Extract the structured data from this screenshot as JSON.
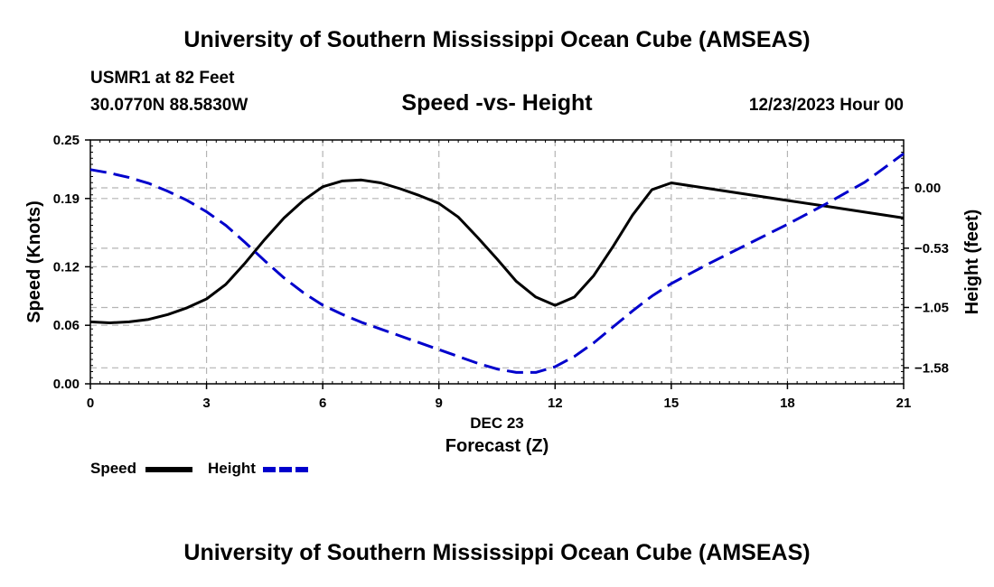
{
  "header": {
    "title": "University of Southern Mississippi Ocean Cube (AMSEAS)",
    "station": "USMR1 at 82 Feet",
    "coords": "30.0770N  88.5830W",
    "subtitle": "Speed -vs- Height",
    "datetime": "12/23/2023 Hour 00"
  },
  "footer": {
    "title": "University of Southern Mississippi Ocean Cube (AMSEAS)"
  },
  "legend": {
    "speed_label": "Speed",
    "height_label": "Height"
  },
  "chart_data": {
    "type": "line",
    "title": "Speed -vs- Height",
    "xlabel": "Forecast (Z)",
    "xlabel_date": "DEC 23",
    "ylabel": "Speed (Knots)",
    "y2label": "Height (feet)",
    "xlim": [
      0,
      21
    ],
    "ylim": [
      0,
      0.25
    ],
    "y2lim": [
      -1.72,
      0.42
    ],
    "x_ticks": [
      0,
      3,
      6,
      9,
      12,
      15,
      18,
      21
    ],
    "y_ticks": [
      0.0,
      0.06,
      0.12,
      0.19,
      0.25
    ],
    "y_tick_labels": [
      "0.00",
      "0.06",
      "0.12",
      "0.19",
      "0.25"
    ],
    "y2_ticks": [
      0.0,
      -0.53,
      -1.05,
      -1.58
    ],
    "y2_tick_labels": [
      "0.00",
      "−0.53",
      "−1.05",
      "−1.58"
    ],
    "grid": true,
    "colors": {
      "speed": "#000000",
      "height": "#0000cc",
      "grid": "#b4b4b4"
    },
    "series": [
      {
        "name": "Speed",
        "axis": "left",
        "style": "solid",
        "x": [
          0,
          0.5,
          1,
          1.5,
          2,
          2.5,
          3,
          3.5,
          4,
          4.5,
          5,
          5.5,
          6,
          6.5,
          7,
          7.5,
          8,
          8.5,
          9,
          9.5,
          10,
          10.5,
          11,
          11.5,
          12,
          12.5,
          13,
          13.5,
          14,
          14.5,
          15,
          16,
          17,
          18,
          19,
          20,
          21
        ],
        "values": [
          0.0635,
          0.0625,
          0.0635,
          0.066,
          0.071,
          0.078,
          0.087,
          0.102,
          0.124,
          0.148,
          0.17,
          0.188,
          0.202,
          0.208,
          0.209,
          0.206,
          0.2,
          0.193,
          0.185,
          0.171,
          0.15,
          0.128,
          0.105,
          0.089,
          0.0805,
          0.089,
          0.111,
          0.141,
          0.173,
          0.199,
          0.206,
          0.2,
          0.194,
          0.188,
          0.182,
          0.176,
          0.17
        ]
      },
      {
        "name": "Height",
        "axis": "right",
        "style": "dashed",
        "x": [
          0,
          0.5,
          1,
          1.5,
          2,
          2.5,
          3,
          3.5,
          4,
          4.5,
          5,
          5.5,
          6,
          6.5,
          7,
          7.5,
          8,
          8.5,
          9,
          9.5,
          10,
          10.5,
          11,
          11.5,
          12,
          12.5,
          13,
          13.5,
          14,
          14.5,
          15,
          16,
          17,
          18,
          19,
          20,
          21
        ],
        "values": [
          0.16,
          0.13,
          0.09,
          0.04,
          -0.03,
          -0.11,
          -0.21,
          -0.33,
          -0.48,
          -0.64,
          -0.79,
          -0.92,
          -1.03,
          -1.11,
          -1.18,
          -1.24,
          -1.3,
          -1.36,
          -1.42,
          -1.48,
          -1.54,
          -1.59,
          -1.62,
          -1.62,
          -1.57,
          -1.48,
          -1.36,
          -1.22,
          -1.08,
          -0.95,
          -0.84,
          -0.66,
          -0.49,
          -0.32,
          -0.14,
          0.05,
          0.3
        ]
      }
    ]
  }
}
